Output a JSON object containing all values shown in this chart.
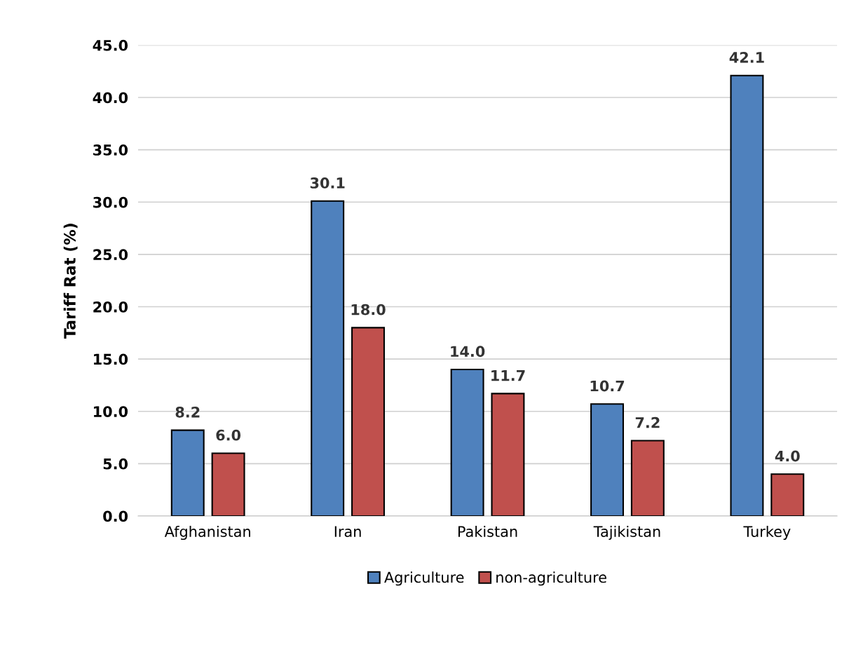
{
  "chart_data": {
    "type": "bar",
    "ylabel": "Tariff Rat (%)",
    "categories": [
      "Afghanistan",
      "Iran",
      "Pakistan",
      "Tajikistan",
      "Turkey"
    ],
    "series": [
      {
        "name": "Agriculture",
        "color": "#4f81bd",
        "values": [
          8.2,
          30.1,
          14.0,
          10.7,
          42.1
        ],
        "value_labels": [
          "8.2",
          "30.1",
          "14.0",
          "10.7",
          "42.1"
        ]
      },
      {
        "name": "non-agriculture",
        "color": "#c0504d",
        "values": [
          6.0,
          18.0,
          11.7,
          7.2,
          4.0
        ],
        "value_labels": [
          "6.0",
          "18.0",
          "11.7",
          "7.2",
          "4.0"
        ]
      }
    ],
    "ylim": [
      0,
      45
    ],
    "yticks": [
      {
        "value": 0,
        "label": "0.0"
      },
      {
        "value": 5,
        "label": "5.0"
      },
      {
        "value": 10,
        "label": "10.0"
      },
      {
        "value": 15,
        "label": "15.0"
      },
      {
        "value": 20,
        "label": "20.0"
      },
      {
        "value": 25,
        "label": "25.0"
      },
      {
        "value": 30,
        "label": "30.0"
      },
      {
        "value": 35,
        "label": "35.0"
      },
      {
        "value": 40,
        "label": "40.0"
      },
      {
        "value": 45,
        "label": "45.0"
      }
    ],
    "grid": "y",
    "legend": "bottom"
  }
}
